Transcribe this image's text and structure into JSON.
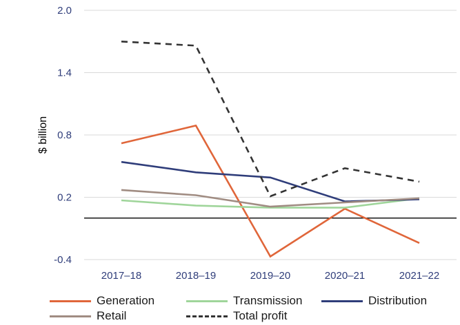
{
  "chart_data": {
    "type": "line",
    "categories": [
      "2017–18",
      "2018–19",
      "2019–20",
      "2020–21",
      "2021–22"
    ],
    "ylabel": "$ billion",
    "yticks": [
      "2.0",
      "1.4",
      "0.8",
      "0.2",
      "-0.4"
    ],
    "ylim": [
      -0.4,
      2.0
    ],
    "grid": true,
    "zero_line": true,
    "legend_position": "bottom",
    "series": [
      {
        "name": "Generation",
        "values": [
          0.72,
          0.89,
          -0.37,
          0.09,
          -0.24
        ],
        "color": "#e0663a",
        "dash": "solid"
      },
      {
        "name": "Transmission",
        "values": [
          0.17,
          0.12,
          0.1,
          0.1,
          0.19
        ],
        "color": "#9fd59a",
        "dash": "solid"
      },
      {
        "name": "Distribution",
        "values": [
          0.54,
          0.44,
          0.39,
          0.16,
          0.18
        ],
        "color": "#2f3d7a",
        "dash": "solid"
      },
      {
        "name": "Retail",
        "values": [
          0.27,
          0.22,
          0.11,
          0.15,
          0.19
        ],
        "color": "#a08c82",
        "dash": "solid"
      },
      {
        "name": "Total profit",
        "values": [
          1.7,
          1.66,
          0.21,
          0.48,
          0.35
        ],
        "color": "#333333",
        "dash": "dashed"
      }
    ]
  }
}
